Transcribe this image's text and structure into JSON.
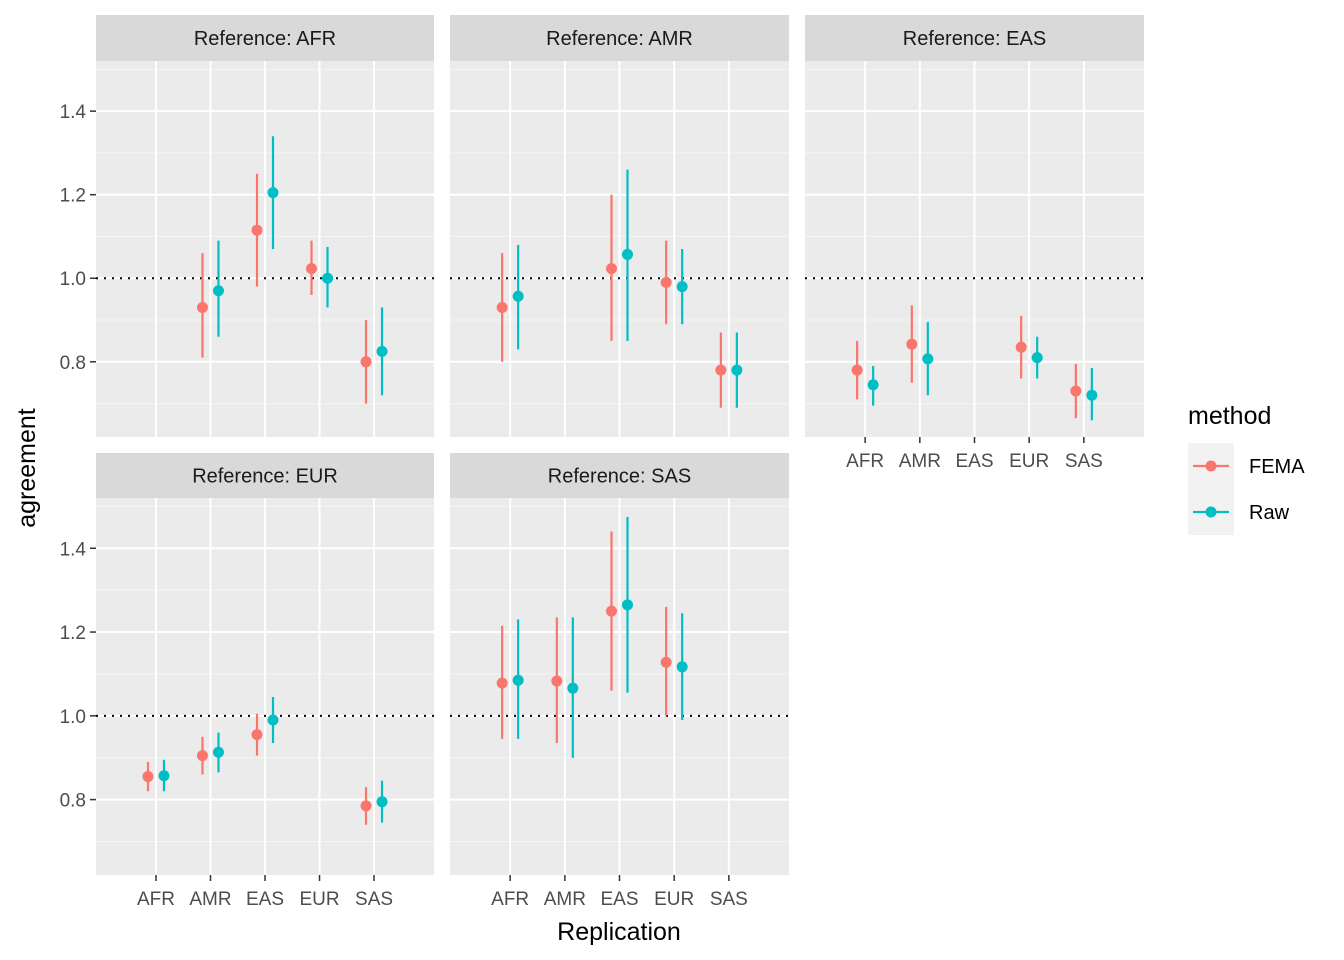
{
  "chart_data": {
    "type": "pointrange-facets",
    "xlabel": "Replication",
    "ylabel": "agreement",
    "ylim": [
      0.62,
      1.52
    ],
    "yticks": [
      0.8,
      1.0,
      1.2,
      1.4
    ],
    "ytick_labels": [
      "0.8",
      "1.0",
      "1.2",
      "1.4"
    ],
    "categories": [
      "AFR",
      "AMR",
      "EAS",
      "EUR",
      "SAS"
    ],
    "reference_line": 1.0,
    "legend": {
      "title": "method",
      "position": "right",
      "entries": [
        {
          "name": "FEMA",
          "color": "#F8766D"
        },
        {
          "name": "Raw",
          "color": "#00BFC4"
        }
      ]
    },
    "colors": {
      "FEMA": "#F8766D",
      "Raw": "#00BFC4"
    },
    "facets": [
      {
        "title": "Reference: AFR",
        "series": [
          {
            "name": "FEMA",
            "points": [
              {
                "x": "AMR",
                "y": 0.93,
                "lo": 0.81,
                "hi": 1.06
              },
              {
                "x": "EAS",
                "y": 1.115,
                "lo": 0.98,
                "hi": 1.25
              },
              {
                "x": "EUR",
                "y": 1.023,
                "lo": 0.96,
                "hi": 1.09
              },
              {
                "x": "SAS",
                "y": 0.8,
                "lo": 0.7,
                "hi": 0.9
              }
            ]
          },
          {
            "name": "Raw",
            "points": [
              {
                "x": "AMR",
                "y": 0.97,
                "lo": 0.86,
                "hi": 1.09
              },
              {
                "x": "EAS",
                "y": 1.205,
                "lo": 1.07,
                "hi": 1.34
              },
              {
                "x": "EUR",
                "y": 1.0,
                "lo": 0.93,
                "hi": 1.075
              },
              {
                "x": "SAS",
                "y": 0.825,
                "lo": 0.72,
                "hi": 0.93
              }
            ]
          }
        ]
      },
      {
        "title": "Reference: AMR",
        "series": [
          {
            "name": "FEMA",
            "points": [
              {
                "x": "AFR",
                "y": 0.93,
                "lo": 0.8,
                "hi": 1.06
              },
              {
                "x": "EAS",
                "y": 1.023,
                "lo": 0.85,
                "hi": 1.2
              },
              {
                "x": "EUR",
                "y": 0.99,
                "lo": 0.89,
                "hi": 1.09
              },
              {
                "x": "SAS",
                "y": 0.78,
                "lo": 0.69,
                "hi": 0.87
              }
            ]
          },
          {
            "name": "Raw",
            "points": [
              {
                "x": "AFR",
                "y": 0.957,
                "lo": 0.83,
                "hi": 1.08
              },
              {
                "x": "EAS",
                "y": 1.057,
                "lo": 0.85,
                "hi": 1.26
              },
              {
                "x": "EUR",
                "y": 0.98,
                "lo": 0.89,
                "hi": 1.07
              },
              {
                "x": "SAS",
                "y": 0.78,
                "lo": 0.69,
                "hi": 0.87
              }
            ]
          }
        ]
      },
      {
        "title": "Reference: EAS",
        "series": [
          {
            "name": "FEMA",
            "points": [
              {
                "x": "AFR",
                "y": 0.78,
                "lo": 0.71,
                "hi": 0.85
              },
              {
                "x": "AMR",
                "y": 0.842,
                "lo": 0.75,
                "hi": 0.935
              },
              {
                "x": "EUR",
                "y": 0.835,
                "lo": 0.76,
                "hi": 0.91
              },
              {
                "x": "SAS",
                "y": 0.73,
                "lo": 0.665,
                "hi": 0.795
              }
            ]
          },
          {
            "name": "Raw",
            "points": [
              {
                "x": "AFR",
                "y": 0.745,
                "lo": 0.695,
                "hi": 0.79
              },
              {
                "x": "AMR",
                "y": 0.807,
                "lo": 0.72,
                "hi": 0.895
              },
              {
                "x": "EUR",
                "y": 0.81,
                "lo": 0.76,
                "hi": 0.86
              },
              {
                "x": "SAS",
                "y": 0.72,
                "lo": 0.66,
                "hi": 0.785
              }
            ]
          }
        ]
      },
      {
        "title": "Reference: EUR",
        "series": [
          {
            "name": "FEMA",
            "points": [
              {
                "x": "AFR",
                "y": 0.855,
                "lo": 0.82,
                "hi": 0.89
              },
              {
                "x": "AMR",
                "y": 0.905,
                "lo": 0.86,
                "hi": 0.95
              },
              {
                "x": "EAS",
                "y": 0.955,
                "lo": 0.905,
                "hi": 1.005
              },
              {
                "x": "SAS",
                "y": 0.785,
                "lo": 0.74,
                "hi": 0.83
              }
            ]
          },
          {
            "name": "Raw",
            "points": [
              {
                "x": "AFR",
                "y": 0.857,
                "lo": 0.82,
                "hi": 0.895
              },
              {
                "x": "AMR",
                "y": 0.913,
                "lo": 0.865,
                "hi": 0.96
              },
              {
                "x": "EAS",
                "y": 0.99,
                "lo": 0.935,
                "hi": 1.045
              },
              {
                "x": "SAS",
                "y": 0.795,
                "lo": 0.745,
                "hi": 0.845
              }
            ]
          }
        ]
      },
      {
        "title": "Reference: SAS",
        "series": [
          {
            "name": "FEMA",
            "points": [
              {
                "x": "AFR",
                "y": 1.078,
                "lo": 0.945,
                "hi": 1.215
              },
              {
                "x": "AMR",
                "y": 1.083,
                "lo": 0.935,
                "hi": 1.235
              },
              {
                "x": "EAS",
                "y": 1.25,
                "lo": 1.06,
                "hi": 1.44
              },
              {
                "x": "EUR",
                "y": 1.128,
                "lo": 1.0,
                "hi": 1.26
              }
            ]
          },
          {
            "name": "Raw",
            "points": [
              {
                "x": "AFR",
                "y": 1.085,
                "lo": 0.945,
                "hi": 1.23
              },
              {
                "x": "AMR",
                "y": 1.066,
                "lo": 0.9,
                "hi": 1.235
              },
              {
                "x": "EAS",
                "y": 1.265,
                "lo": 1.055,
                "hi": 1.475
              },
              {
                "x": "EUR",
                "y": 1.117,
                "lo": 0.99,
                "hi": 1.245
              }
            ]
          }
        ]
      }
    ]
  }
}
